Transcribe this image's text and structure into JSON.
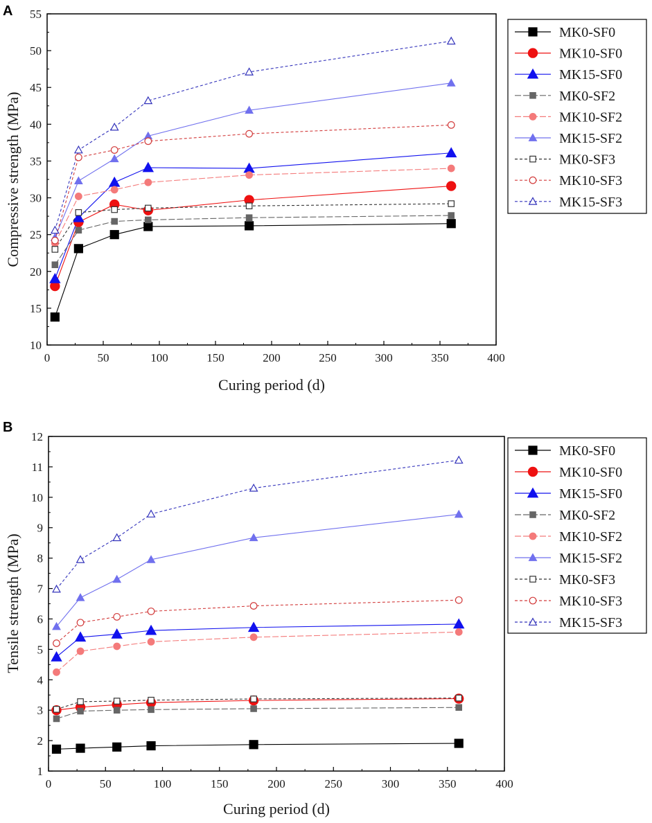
{
  "chart_data": [
    {
      "type": "line",
      "panel_label": "A",
      "title": "",
      "xlabel": "Curing period (d)",
      "ylabel": "Compressive strength (MPa)",
      "xlim": [
        0,
        400
      ],
      "ylim": [
        10,
        55
      ],
      "xticks": [
        0,
        50,
        100,
        150,
        200,
        250,
        300,
        350,
        400
      ],
      "yticks": [
        10,
        15,
        20,
        25,
        30,
        35,
        40,
        45,
        50,
        55
      ],
      "grid": false,
      "legend_position": "right",
      "x": [
        7,
        28,
        60,
        90,
        180,
        360
      ],
      "series": [
        {
          "name": "MK0-SF0",
          "values": [
            13.8,
            23.1,
            25.0,
            26.1,
            26.2,
            26.5
          ]
        },
        {
          "name": "MK10-SF0",
          "values": [
            18.0,
            26.7,
            29.1,
            28.3,
            29.7,
            31.6
          ]
        },
        {
          "name": "MK15-SF0",
          "values": [
            19.0,
            27.3,
            32.1,
            34.1,
            34.0,
            36.1
          ]
        },
        {
          "name": "MK0-SF2",
          "values": [
            20.9,
            25.6,
            26.8,
            27.0,
            27.3,
            27.6
          ]
        },
        {
          "name": "MK10-SF2",
          "values": [
            23.8,
            30.2,
            31.1,
            32.1,
            33.1,
            34.0
          ]
        },
        {
          "name": "MK15-SF2",
          "values": [
            24.6,
            32.3,
            35.3,
            38.4,
            41.9,
            45.6
          ]
        },
        {
          "name": "MK0-SF3",
          "values": [
            23.0,
            28.0,
            28.4,
            28.6,
            28.9,
            29.2
          ]
        },
        {
          "name": "MK10-SF3",
          "values": [
            24.2,
            35.5,
            36.5,
            37.7,
            38.7,
            39.9
          ]
        },
        {
          "name": "MK15-SF3",
          "values": [
            25.6,
            36.5,
            39.6,
            43.2,
            47.1,
            51.3
          ]
        }
      ]
    },
    {
      "type": "line",
      "panel_label": "B",
      "title": "",
      "xlabel": "Curing period (d)",
      "ylabel": "Tensile strength (MPa)",
      "xlim": [
        0,
        400
      ],
      "ylim": [
        1,
        12
      ],
      "xticks": [
        0,
        50,
        100,
        150,
        200,
        250,
        300,
        350,
        400
      ],
      "yticks": [
        1,
        2,
        3,
        4,
        5,
        6,
        7,
        8,
        9,
        10,
        11,
        12
      ],
      "grid": false,
      "legend_position": "right",
      "x": [
        7,
        28,
        60,
        90,
        180,
        360
      ],
      "series": [
        {
          "name": "MK0-SF0",
          "values": [
            1.72,
            1.75,
            1.79,
            1.83,
            1.87,
            1.91
          ]
        },
        {
          "name": "MK10-SF0",
          "values": [
            3.0,
            3.1,
            3.18,
            3.25,
            3.32,
            3.38
          ]
        },
        {
          "name": "MK15-SF0",
          "values": [
            4.75,
            5.4,
            5.5,
            5.62,
            5.72,
            5.83
          ]
        },
        {
          "name": "MK0-SF2",
          "values": [
            2.72,
            2.97,
            3.0,
            3.02,
            3.05,
            3.09
          ]
        },
        {
          "name": "MK10-SF2",
          "values": [
            4.25,
            4.94,
            5.1,
            5.25,
            5.4,
            5.57
          ]
        },
        {
          "name": "MK15-SF2",
          "values": [
            5.75,
            6.7,
            7.3,
            7.95,
            8.67,
            9.44
          ]
        },
        {
          "name": "MK0-SF3",
          "values": [
            3.03,
            3.28,
            3.3,
            3.33,
            3.37,
            3.4
          ]
        },
        {
          "name": "MK10-SF3",
          "values": [
            5.2,
            5.88,
            6.07,
            6.25,
            6.43,
            6.62
          ]
        },
        {
          "name": "MK15-SF3",
          "values": [
            6.98,
            7.95,
            8.67,
            9.45,
            10.3,
            11.22
          ]
        }
      ]
    }
  ],
  "series_styles": [
    {
      "color": "#000000",
      "marker": "square",
      "filled": true,
      "dash": "none",
      "size": "large"
    },
    {
      "color": "#ee1111",
      "marker": "circle",
      "filled": true,
      "dash": "none",
      "size": "large"
    },
    {
      "color": "#1111ee",
      "marker": "triangle",
      "filled": true,
      "dash": "none",
      "size": "large"
    },
    {
      "color": "#666666",
      "marker": "square",
      "filled": true,
      "dash": "long",
      "size": "small"
    },
    {
      "color": "#f47a7a",
      "marker": "circle",
      "filled": true,
      "dash": "long",
      "size": "small"
    },
    {
      "color": "#7070ee",
      "marker": "triangle",
      "filled": true,
      "dash": "none",
      "size": "small"
    },
    {
      "color": "#333333",
      "marker": "square",
      "filled": false,
      "dash": "short",
      "size": "small"
    },
    {
      "color": "#d23a3a",
      "marker": "circle",
      "filled": false,
      "dash": "short",
      "size": "small"
    },
    {
      "color": "#3333bb",
      "marker": "triangle",
      "filled": false,
      "dash": "short",
      "size": "small"
    }
  ]
}
